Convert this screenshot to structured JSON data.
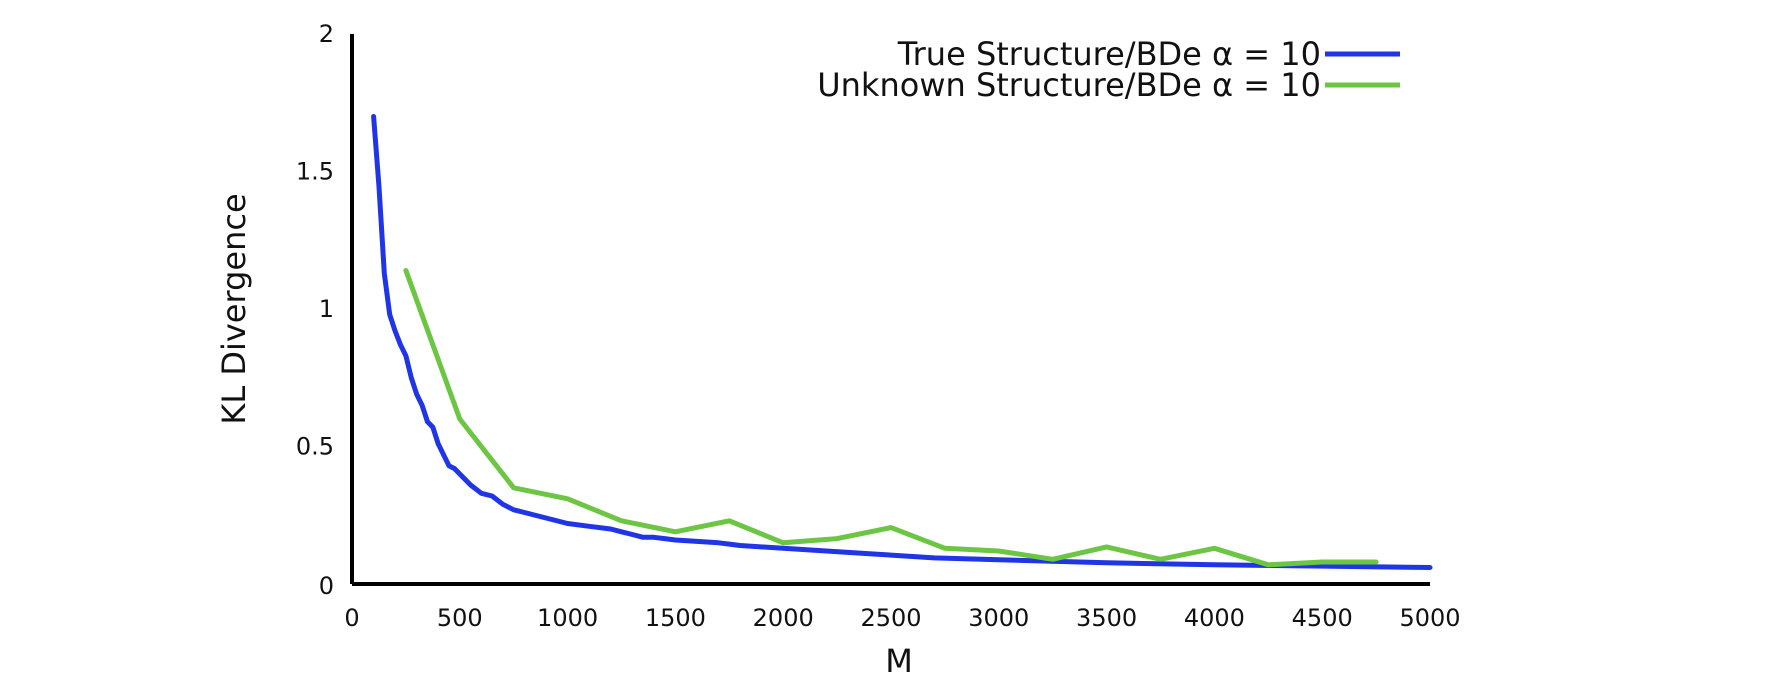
{
  "chart_data": {
    "type": "line",
    "xlabel": "M",
    "ylabel": "KL Divergence",
    "xlim": [
      0,
      5000
    ],
    "ylim": [
      0,
      2
    ],
    "xticks": [
      "0",
      "500",
      "1000",
      "1500",
      "2000",
      "2500",
      "3000",
      "3500",
      "4000",
      "4500",
      "5000"
    ],
    "yticks": [
      "0",
      "0.5",
      "1",
      "1.5",
      "2"
    ],
    "grid": false,
    "legend_position": "top-right",
    "series": [
      {
        "name": "True Structure/BDe α = 10",
        "color": "#1f35e6",
        "x": [
          100,
          125,
          150,
          175,
          200,
          225,
          250,
          275,
          300,
          325,
          350,
          375,
          400,
          425,
          450,
          475,
          500,
          550,
          600,
          650,
          700,
          750,
          800,
          900,
          1000,
          1100,
          1200,
          1250,
          1300,
          1350,
          1400,
          1450,
          1500,
          1600,
          1700,
          1750,
          1800,
          2000,
          2200,
          2400,
          2500,
          2700,
          3000,
          3500,
          4000,
          4500,
          5000
        ],
        "y": [
          1.7,
          1.45,
          1.13,
          0.98,
          0.92,
          0.87,
          0.83,
          0.75,
          0.69,
          0.65,
          0.59,
          0.57,
          0.51,
          0.47,
          0.43,
          0.42,
          0.4,
          0.36,
          0.33,
          0.32,
          0.29,
          0.27,
          0.26,
          0.24,
          0.22,
          0.21,
          0.2,
          0.19,
          0.18,
          0.17,
          0.17,
          0.165,
          0.16,
          0.155,
          0.15,
          0.145,
          0.14,
          0.13,
          0.12,
          0.11,
          0.105,
          0.095,
          0.088,
          0.077,
          0.07,
          0.065,
          0.06
        ]
      },
      {
        "name": "Unknown Structure/BDe α = 10",
        "color": "#6cc644",
        "x": [
          250,
          500,
          750,
          1000,
          1250,
          1500,
          1750,
          2000,
          2250,
          2500,
          2750,
          3000,
          3250,
          3500,
          3750,
          4000,
          4250,
          4500,
          4750
        ],
        "y": [
          1.14,
          0.6,
          0.35,
          0.31,
          0.23,
          0.19,
          0.23,
          0.15,
          0.165,
          0.205,
          0.13,
          0.12,
          0.09,
          0.135,
          0.09,
          0.13,
          0.07,
          0.08,
          0.08
        ]
      }
    ]
  }
}
